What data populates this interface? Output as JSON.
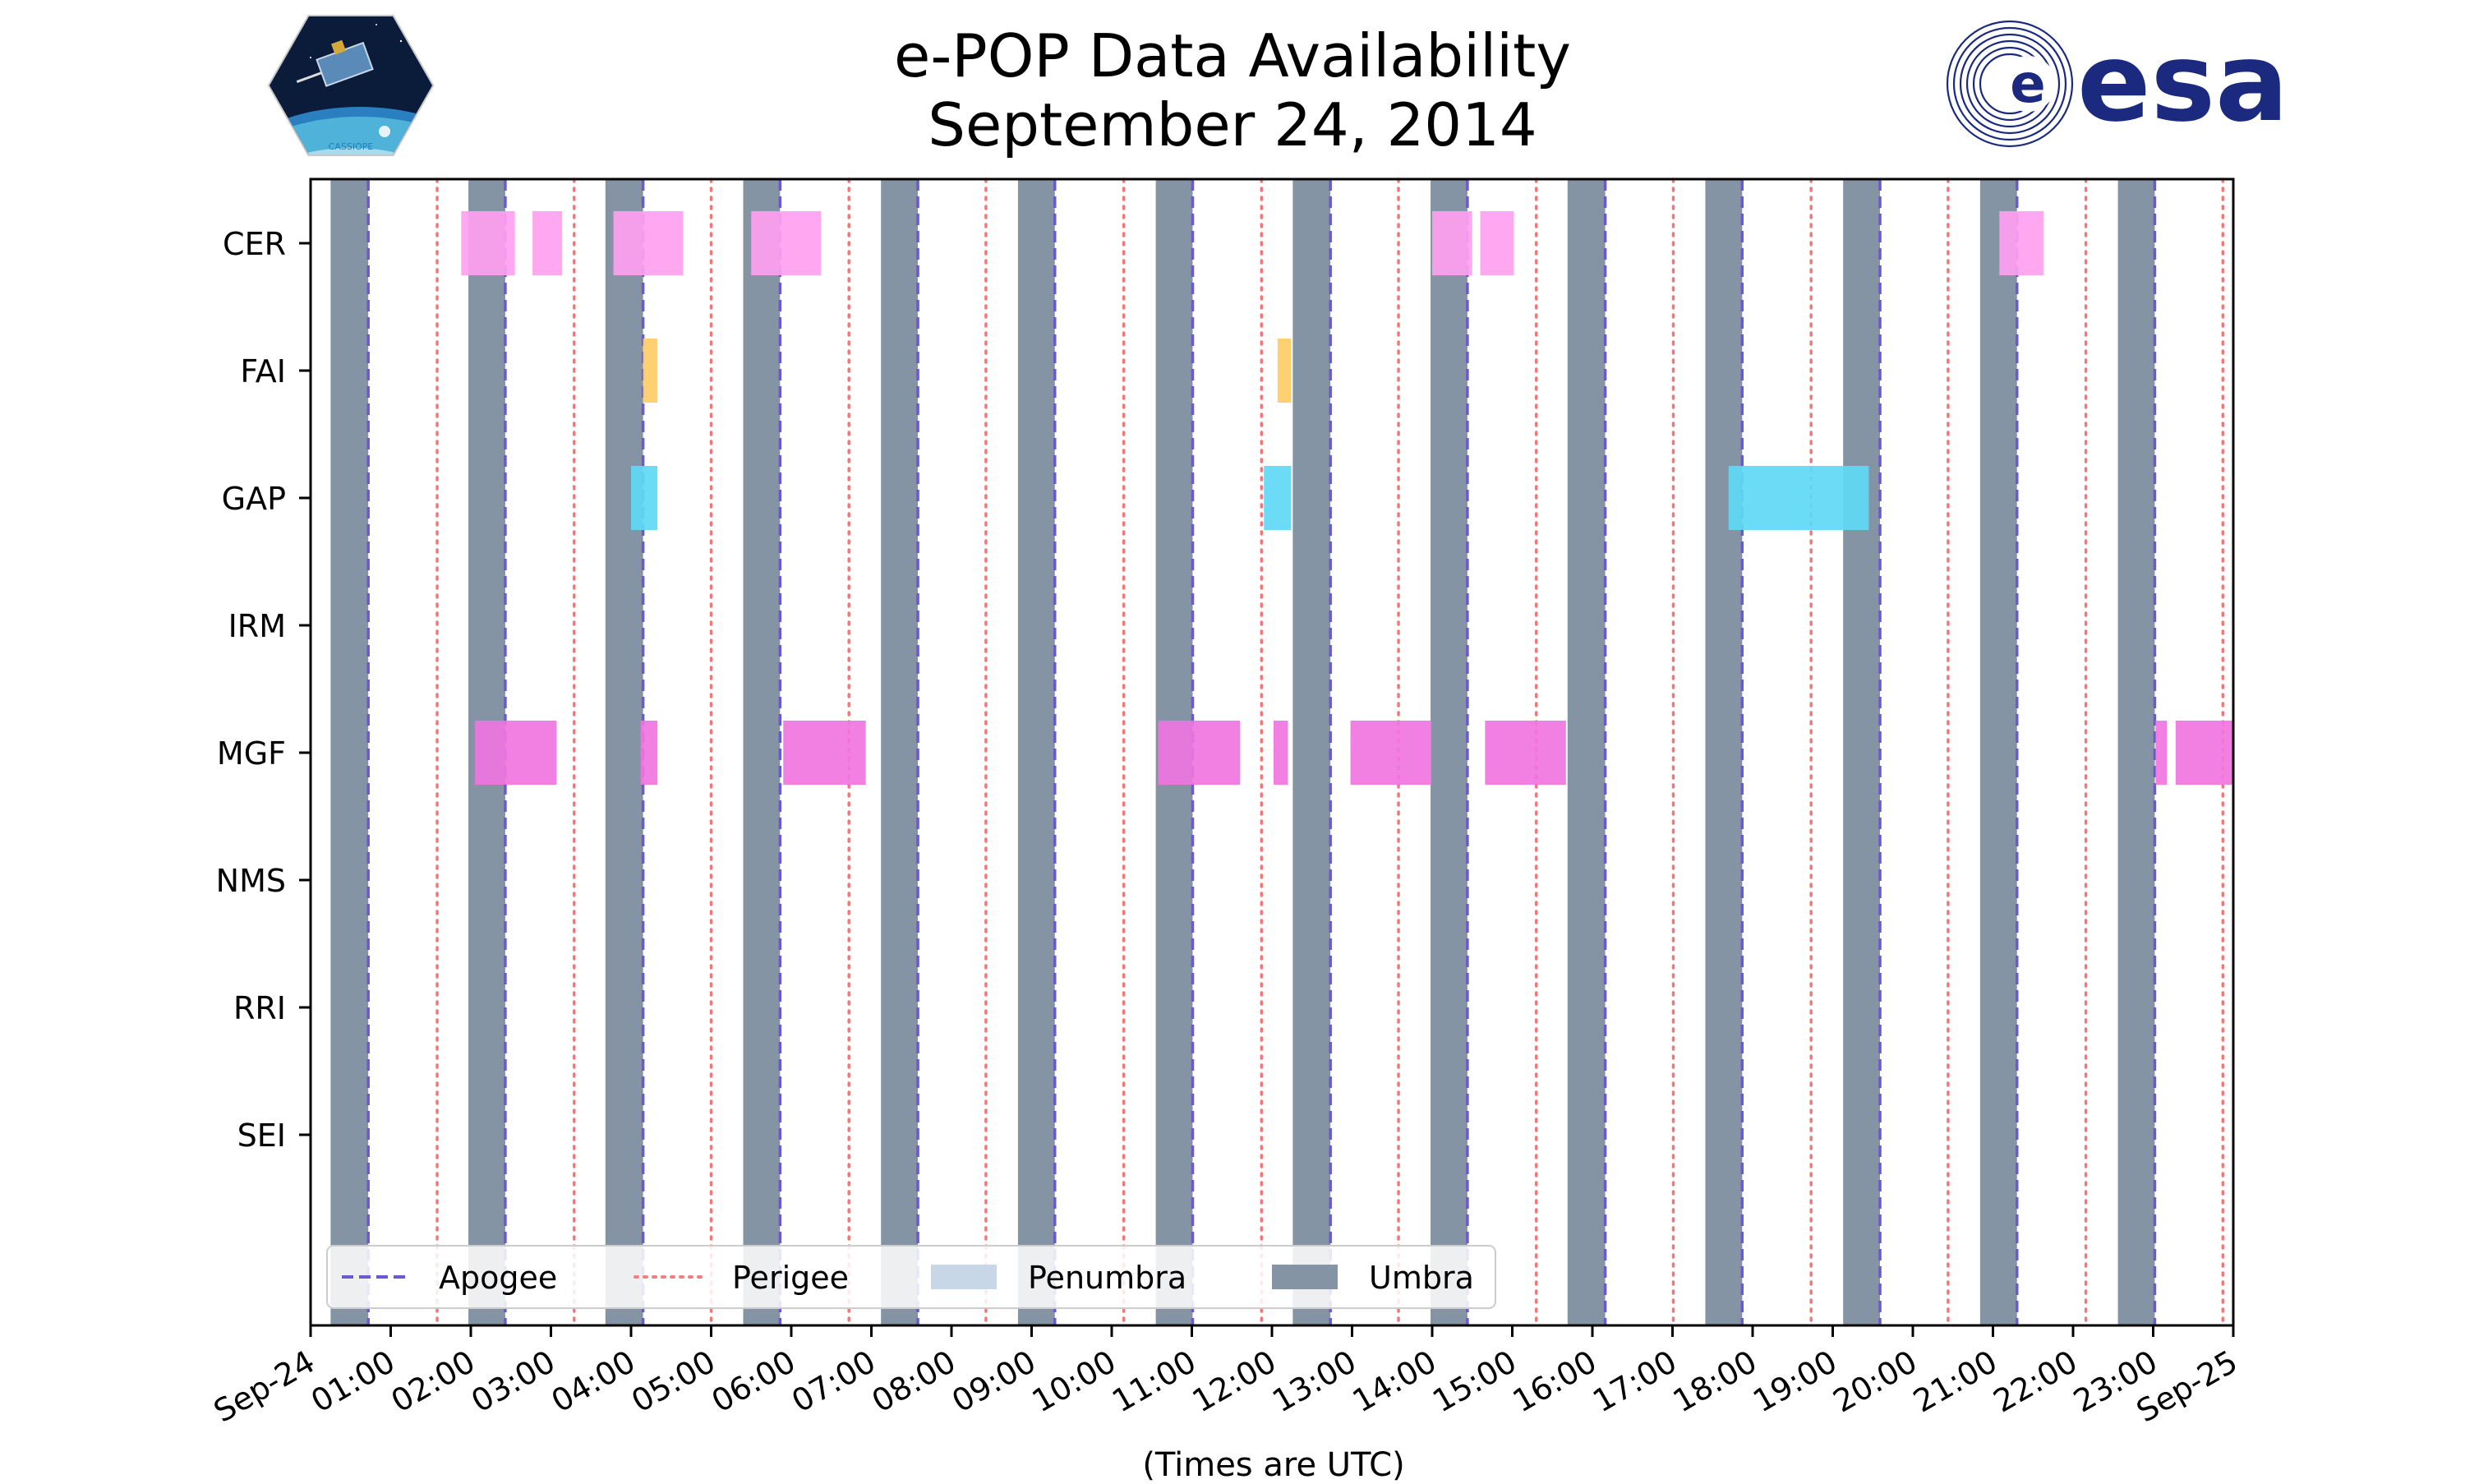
{
  "chart_data": {
    "type": "timeline",
    "title_lines": [
      "e-POP Data Availability",
      "September 24, 2014"
    ],
    "xlabel": "(Times are UTC)",
    "x_range_hours": [
      0,
      24
    ],
    "x_tick_labels": [
      "Sep-24",
      "01:00",
      "02:00",
      "03:00",
      "04:00",
      "05:00",
      "06:00",
      "07:00",
      "08:00",
      "09:00",
      "10:00",
      "11:00",
      "12:00",
      "13:00",
      "14:00",
      "15:00",
      "16:00",
      "17:00",
      "18:00",
      "19:00",
      "20:00",
      "21:00",
      "22:00",
      "23:00",
      "Sep-25"
    ],
    "instruments": [
      "CER",
      "FAI",
      "GAP",
      "IRM",
      "MGF",
      "NMS",
      "RRI",
      "SEI"
    ],
    "umbra": [
      [
        0.25,
        0.72
      ],
      [
        1.97,
        2.43
      ],
      [
        3.68,
        4.15
      ],
      [
        5.4,
        5.86
      ],
      [
        7.12,
        7.58
      ],
      [
        8.83,
        9.29
      ],
      [
        10.55,
        11.01
      ],
      [
        12.26,
        12.73
      ],
      [
        13.98,
        14.44
      ],
      [
        15.69,
        16.16
      ],
      [
        17.41,
        17.87
      ],
      [
        19.13,
        19.59
      ],
      [
        20.84,
        21.3
      ],
      [
        22.56,
        23.02
      ]
    ],
    "apogee_hours": [
      0.72,
      2.43,
      4.15,
      5.86,
      7.58,
      9.29,
      11.01,
      12.73,
      14.44,
      16.16,
      17.87,
      19.59,
      21.3,
      23.02
    ],
    "perigee_hours": [
      1.58,
      3.29,
      5.0,
      6.72,
      8.43,
      10.15,
      11.87,
      13.58,
      15.3,
      17.01,
      18.73,
      20.44,
      22.16,
      23.87
    ],
    "intervals": [
      {
        "instrument": "CER",
        "color": "#ff9ff0",
        "segments": [
          [
            1.88,
            2.55
          ],
          [
            2.77,
            3.14
          ],
          [
            3.78,
            4.65
          ],
          [
            5.5,
            6.37
          ],
          [
            14.0,
            14.5
          ],
          [
            14.6,
            15.02
          ],
          [
            21.08,
            21.63
          ]
        ]
      },
      {
        "instrument": "FAI",
        "color": "#ffcc66",
        "segments": [
          [
            4.15,
            4.33
          ],
          [
            12.07,
            12.24
          ]
        ]
      },
      {
        "instrument": "GAP",
        "color": "#5fd9f5",
        "segments": [
          [
            4.0,
            4.33
          ],
          [
            11.9,
            12.24
          ],
          [
            17.7,
            19.45
          ]
        ]
      },
      {
        "instrument": "IRM",
        "color": "#888888",
        "segments": []
      },
      {
        "instrument": "MGF",
        "color": "#f075e0",
        "segments": [
          [
            2.05,
            3.07
          ],
          [
            4.12,
            4.33
          ],
          [
            5.9,
            6.93
          ],
          [
            10.58,
            11.6
          ],
          [
            12.02,
            12.2
          ],
          [
            12.98,
            13.99
          ],
          [
            14.66,
            15.67
          ],
          [
            23.03,
            23.17
          ],
          [
            23.28,
            24.0
          ]
        ]
      },
      {
        "instrument": "NMS",
        "color": "#888888",
        "segments": []
      },
      {
        "instrument": "RRI",
        "color": "#888888",
        "segments": []
      },
      {
        "instrument": "SEI",
        "color": "#888888",
        "segments": []
      }
    ],
    "legend": {
      "position": "lower-left",
      "entries": [
        {
          "label": "Apogee",
          "style": "dashed",
          "color": "#6a5acd"
        },
        {
          "label": "Perigee",
          "style": "dotted",
          "color": "#f08080"
        },
        {
          "label": "Penumbra",
          "style": "patch",
          "color": "#c8d7e8"
        },
        {
          "label": "Umbra",
          "style": "patch",
          "color": "#8494a4"
        }
      ]
    }
  },
  "logos": {
    "cassiope": {
      "text": "CASSIOPE"
    },
    "esa": {
      "text": "esa",
      "color": "#1b2a7e"
    }
  }
}
